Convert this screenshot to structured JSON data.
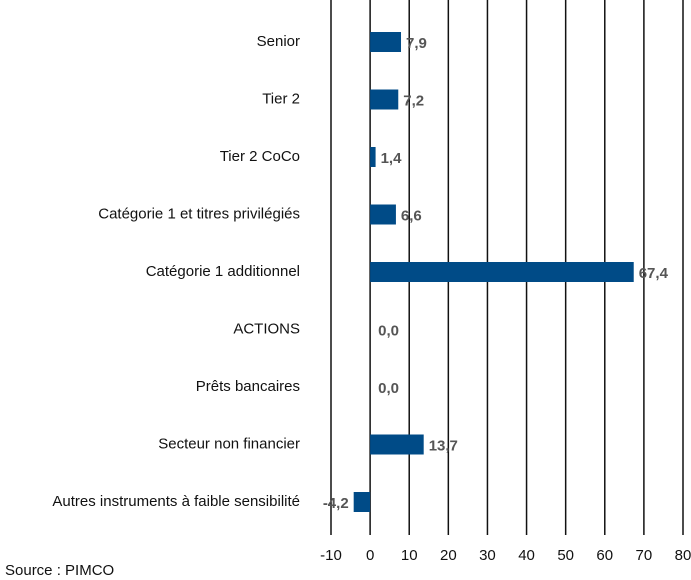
{
  "chart_data": {
    "type": "barh",
    "categories": [
      "Senior",
      "Tier 2",
      "Tier 2 CoCo",
      "Catégorie 1 et titres privilégiés",
      "Catégorie 1 additionnel",
      "ACTIONS",
      "Prêts bancaires",
      "Secteur non financier",
      "Autres instruments à faible sensibilité"
    ],
    "values": [
      7.9,
      7.2,
      1.4,
      6.6,
      67.4,
      0.0,
      0.0,
      13.7,
      -4.2
    ],
    "value_labels": [
      "7,9",
      "7,2",
      "1,4",
      "6,6",
      "67,4",
      "0,0",
      "0,0",
      "13,7",
      "-4,2"
    ],
    "color": "#004b87",
    "xlim": [
      -10,
      80
    ],
    "xticks": [
      -10,
      0,
      10,
      20,
      30,
      40,
      50,
      60,
      70,
      80
    ],
    "grid": true,
    "source": "Source : PIMCO"
  }
}
